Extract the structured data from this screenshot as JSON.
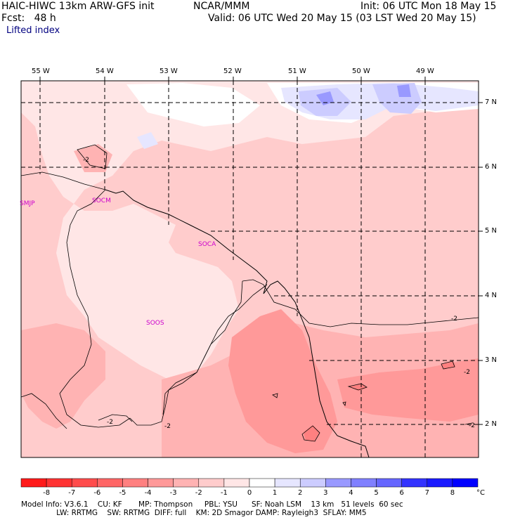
{
  "header": {
    "model": "HAIC-HIWC 13km ARW-GFS init",
    "center": "NCAR/MMM",
    "init": "Init: 06 UTC Mon 18 May 15",
    "fcst": "Fcst:   48 h",
    "valid": "Valid: 06 UTC Wed 20 May 15 (03 LST Wed 20 May 15)",
    "field": "Lifted index"
  },
  "map": {
    "lon_labels": [
      "55 W",
      "54 W",
      "53 W",
      "52 W",
      "51 W",
      "50 W",
      "49 W"
    ],
    "lat_labels": [
      "7 N",
      "6 N",
      "5 N",
      "4 N",
      "3 N",
      "2 N"
    ],
    "stations": [
      "SMJP",
      "SOCM",
      "SOCA",
      "SOOS"
    ],
    "contour_labels": [
      "-2",
      "-2",
      "-2",
      "-2",
      "-2",
      "-2"
    ]
  },
  "colorbar": {
    "ticks": [
      "-8",
      "-7",
      "-6",
      "-5",
      "-4",
      "-3",
      "-2",
      "-1",
      "0",
      "1",
      "2",
      "3",
      "4",
      "5",
      "6",
      "7",
      "8"
    ],
    "unit": "°C",
    "colors": [
      "#ff1a1a",
      "#ff3333",
      "#ff4c4c",
      "#ff6666",
      "#ff8080",
      "#ff9999",
      "#ffb3b3",
      "#ffcccc",
      "#ffe6e6",
      "#ffffff",
      "#e6e6ff",
      "#ccccff",
      "#9999ff",
      "#8080ff",
      "#6666ff",
      "#3333ff",
      "#1a1aff",
      "#0000ff"
    ]
  },
  "footer": {
    "line1": "Model Info: V3.6.1    CU: KF       MP: Thompson     PBL: YSU      SF: Noah LSM    13 km   51 levels  60 sec",
    "line2": "               LW: RRTMG    SW: RRTMG  DIFF: full    KM: 2D Smagor DAMP: Rayleigh3  SFLAY: MM5"
  }
}
